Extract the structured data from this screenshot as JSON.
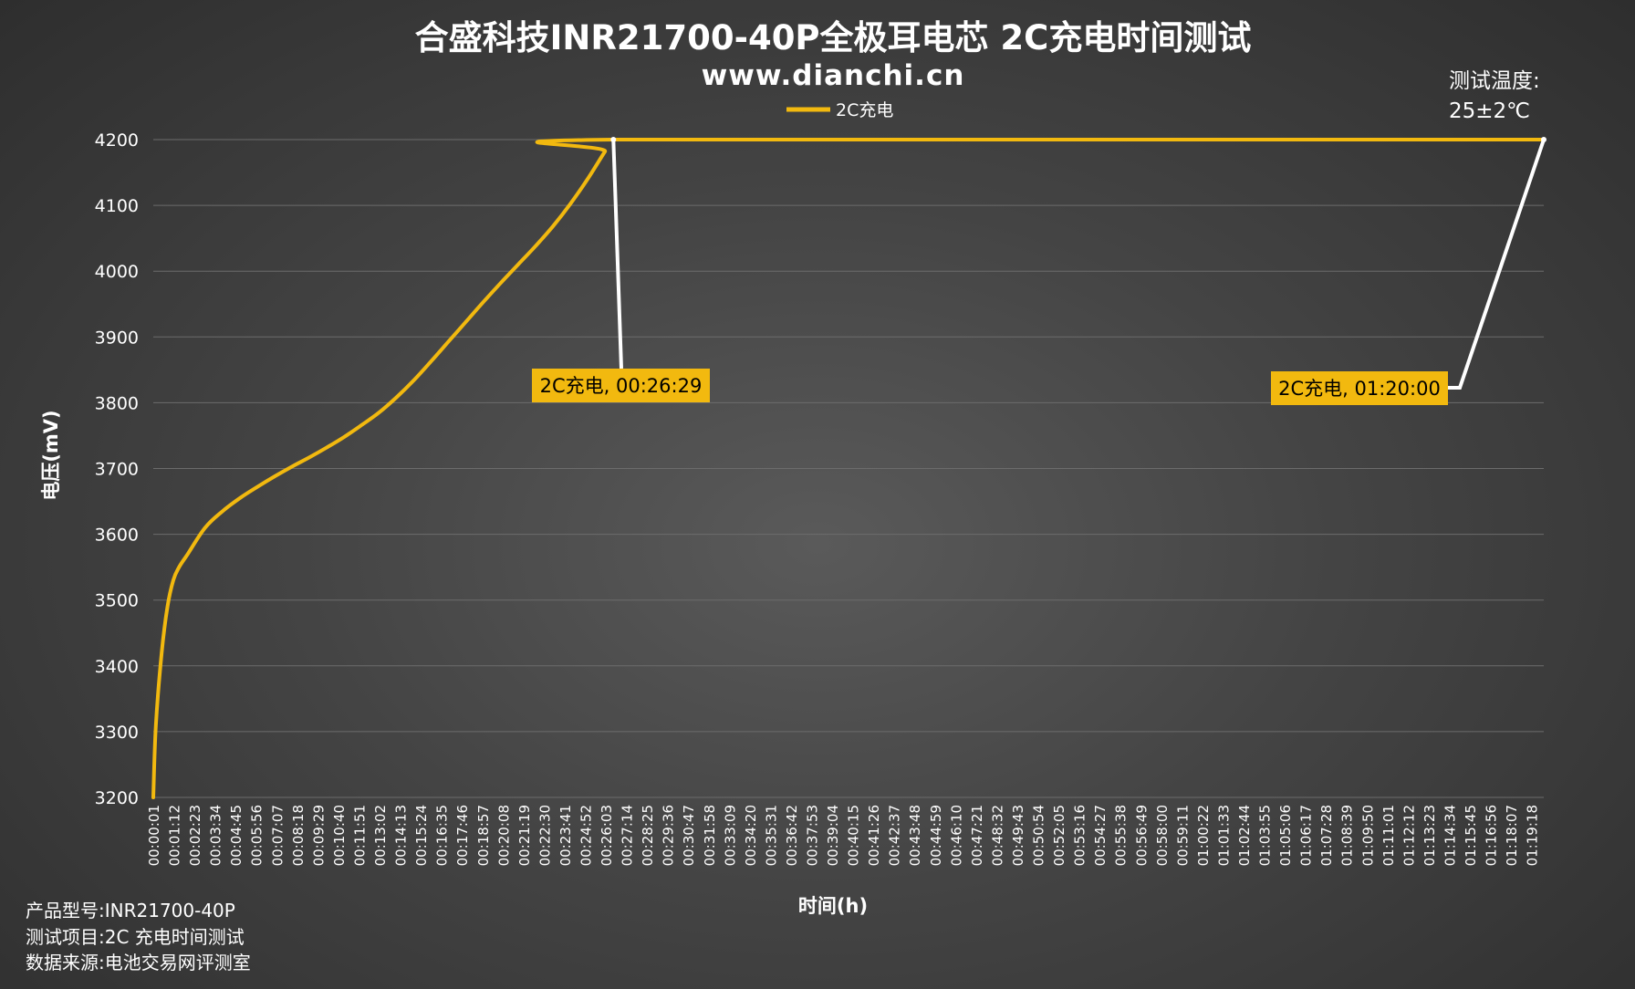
{
  "header": {
    "title": "合盛科技INR21700-40P全极耳电芯 2C充电时间测试",
    "subtitle": "www.dianchi.cn"
  },
  "temperature": {
    "line1": "测试温度:",
    "line2": "25±2℃"
  },
  "footer": {
    "line1": "产品型号:INR21700-40P",
    "line2": "测试项目:2C 充电时间测试",
    "line3": "数据来源:电池交易网评测室"
  },
  "colors": {
    "series": "#F2B90F",
    "annotation_bg": "#F2B90F",
    "leader": "#ffffff",
    "grid": "#6c6c6c"
  },
  "chart_data": {
    "type": "line",
    "title": "合盛科技INR21700-40P全极耳电芯 2C充电时间测试",
    "xlabel": "时间(h)",
    "ylabel": "电压(mV)",
    "ylim": [
      3200,
      4200
    ],
    "yticks": [
      3200,
      3300,
      3400,
      3500,
      3600,
      3700,
      3800,
      3900,
      4000,
      4100,
      4200
    ],
    "x_range": [
      "00:00:01",
      "01:20:00"
    ],
    "grid": true,
    "legend_position": "top-center",
    "xticks": [
      "00:00:01",
      "00:01:12",
      "00:02:23",
      "00:03:34",
      "00:04:45",
      "00:05:56",
      "00:07:07",
      "00:08:18",
      "00:09:29",
      "00:10:40",
      "00:11:51",
      "00:13:02",
      "00:14:13",
      "00:15:24",
      "00:16:35",
      "00:17:46",
      "00:18:57",
      "00:20:08",
      "00:21:19",
      "00:22:30",
      "00:23:41",
      "00:24:52",
      "00:26:03",
      "00:27:14",
      "00:28:25",
      "00:29:36",
      "00:30:47",
      "00:31:58",
      "00:33:09",
      "00:34:20",
      "00:35:31",
      "00:36:42",
      "00:37:53",
      "00:39:04",
      "00:40:15",
      "00:41:26",
      "00:42:37",
      "00:43:48",
      "00:44:59",
      "00:46:10",
      "00:47:21",
      "00:48:32",
      "00:49:43",
      "00:50:54",
      "00:52:05",
      "00:53:16",
      "00:54:27",
      "00:55:38",
      "00:56:49",
      "00:58:00",
      "00:59:11",
      "01:00:22",
      "01:01:33",
      "01:02:44",
      "01:03:55",
      "01:05:06",
      "01:06:17",
      "01:07:28",
      "01:08:39",
      "01:09:50",
      "01:11:01",
      "01:12:12",
      "01:13:23",
      "01:14:34",
      "01:15:45",
      "01:16:56",
      "01:18:07",
      "01:19:18"
    ],
    "series": [
      {
        "name": "2C充电",
        "color": "#F2B90F",
        "points": [
          [
            "00:00:01",
            3200
          ],
          [
            "00:00:10",
            3310
          ],
          [
            "00:00:30",
            3420
          ],
          [
            "00:00:50",
            3490
          ],
          [
            "00:01:10",
            3530
          ],
          [
            "00:01:30",
            3550
          ],
          [
            "00:02:00",
            3570
          ],
          [
            "00:03:00",
            3610
          ],
          [
            "00:04:00",
            3635
          ],
          [
            "00:05:00",
            3655
          ],
          [
            "00:06:00",
            3672
          ],
          [
            "00:07:00",
            3688
          ],
          [
            "00:08:00",
            3703
          ],
          [
            "00:09:00",
            3717
          ],
          [
            "00:10:00",
            3732
          ],
          [
            "00:11:00",
            3748
          ],
          [
            "00:12:00",
            3766
          ],
          [
            "00:13:00",
            3785
          ],
          [
            "00:14:00",
            3808
          ],
          [
            "00:15:00",
            3834
          ],
          [
            "00:16:00",
            3863
          ],
          [
            "00:17:00",
            3893
          ],
          [
            "00:18:00",
            3923
          ],
          [
            "00:19:00",
            3953
          ],
          [
            "00:20:00",
            3982
          ],
          [
            "00:21:00",
            4010
          ],
          [
            "00:22:00",
            4038
          ],
          [
            "00:23:00",
            4068
          ],
          [
            "00:24:00",
            4102
          ],
          [
            "00:25:00",
            4140
          ],
          [
            "00:26:00",
            4182
          ],
          [
            "00:26:29",
            4200
          ],
          [
            "01:20:00",
            4200
          ]
        ]
      }
    ],
    "annotations": [
      {
        "label": "2C充电, 00:26:29",
        "x": "00:26:29",
        "y": 4200
      },
      {
        "label": "2C充电, 01:20:00",
        "x": "01:20:00",
        "y": 4200
      }
    ]
  }
}
